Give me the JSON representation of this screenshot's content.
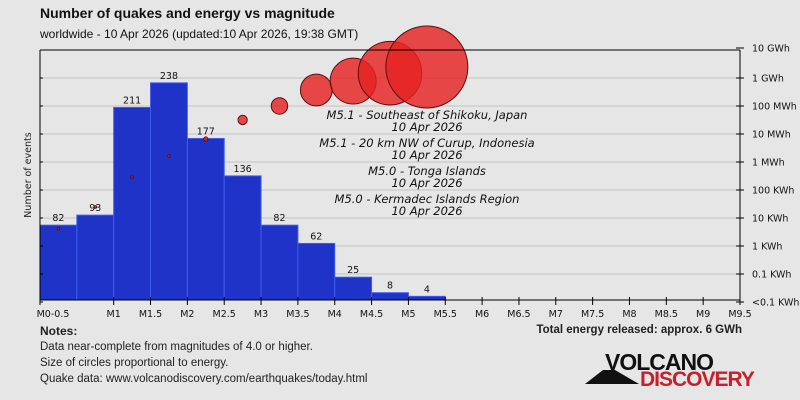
{
  "header": {
    "title": "Number of quakes and energy vs magnitude",
    "subtitle": "worldwide - 10 Apr 2026 (updated:10 Apr 2026, 19:38 GMT)"
  },
  "chart_data": {
    "type": "bar",
    "title": "Number of quakes and energy vs magnitude",
    "ylabel": "Number of events",
    "ylim": [
      0,
      274
    ],
    "x_tick_labels": [
      "M0-0.5",
      "M1",
      "M1.5",
      "M2",
      "M2.5",
      "M3",
      "M3.5",
      "M4",
      "M4.5",
      "M5",
      "M5.5",
      "M6",
      "M6.5",
      "M7",
      "M7.5",
      "M8",
      "M8.5",
      "M9",
      "M9.5"
    ],
    "bins": [
      "0-0.5",
      "0.5-1",
      "1-1.5",
      "1.5-2",
      "2-2.5",
      "2.5-3",
      "3-3.5",
      "3.5-4",
      "4-4.5",
      "4.5-5",
      "5-5.5"
    ],
    "values": [
      82,
      93,
      211,
      238,
      177,
      136,
      82,
      62,
      25,
      8,
      4
    ],
    "bar_color": "#1f33c8",
    "energy_series": {
      "unit": "Wh",
      "scale": "log",
      "values_wh": [
        3500,
        21000,
        245000,
        1400000,
        5600000,
        27000000,
        85000000,
        316000000,
        660000000,
        1260000000,
        2100000000
      ],
      "circle_color": "#e52222"
    },
    "energy_axis_labels": [
      "10 GWh",
      "1 GWh",
      "100 MWh",
      "10 MWh",
      "1 MWh",
      "100 KWh",
      "10 KWh",
      "1 KWh",
      "0.1 KWh",
      "<0.1 KWh"
    ],
    "grid": true,
    "annotations": [
      {
        "line1": "M5.1 - Southeast of Shikoku, Japan",
        "line2": "10 Apr 2026"
      },
      {
        "line1": "M5.1 - 20 km NW of Curup, Indonesia",
        "line2": "10 Apr 2026"
      },
      {
        "line1": "M5.0 - Tonga Islands",
        "line2": "10 Apr 2026"
      },
      {
        "line1": "M5.0 - Kermadec Islands Region",
        "line2": "10 Apr 2026"
      }
    ]
  },
  "notes": {
    "heading": "Notes:",
    "lines": [
      "Data near-complete from magnitudes of 4.0 or higher.",
      "Size of circles proportional to energy.",
      "Quake data: www.volcanodiscovery.com/earthquakes/today.html"
    ],
    "total": "Total energy released: approx. 6 GWh"
  },
  "logo": {
    "line1": "VOLCANO",
    "line2": "DISCOVERY"
  }
}
